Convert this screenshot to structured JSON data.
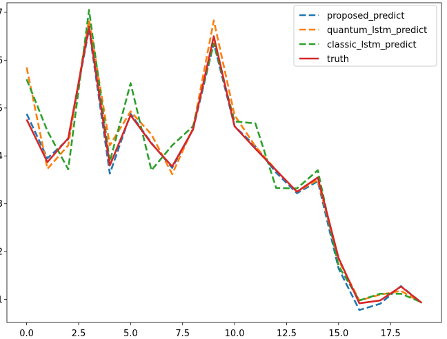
{
  "chart_data": {
    "type": "line",
    "title": "",
    "xlabel": "",
    "ylabel": "",
    "xlim": [
      -0.95,
      19.95
    ],
    "ylim": [
      0.52,
      7.2
    ],
    "x_ticks": [
      0.0,
      2.5,
      5.0,
      7.5,
      10.0,
      12.5,
      15.0,
      17.5
    ],
    "x_tick_labels": [
      "0.0",
      "2.5",
      "5.0",
      "7.5",
      "10.0",
      "12.5",
      "15.0",
      "17.5"
    ],
    "y_ticks": [
      1,
      2,
      3,
      4,
      5,
      6,
      7
    ],
    "y_tick_labels": [
      "1",
      "2",
      "3",
      "4",
      "5",
      "6",
      "7"
    ],
    "grid": false,
    "legend_position": "top-right",
    "x": [
      0,
      1,
      2,
      3,
      4,
      5,
      6,
      7,
      8,
      9,
      10,
      11,
      12,
      13,
      14,
      15,
      16,
      17,
      18,
      19
    ],
    "series": [
      {
        "name": "proposed_predict",
        "color": "#1f77b4",
        "style": "dashed",
        "values": [
          4.88,
          3.95,
          4.35,
          6.65,
          3.63,
          4.88,
          4.27,
          3.75,
          4.55,
          6.35,
          4.62,
          4.2,
          3.65,
          3.22,
          3.47,
          1.65,
          0.78,
          0.91,
          1.28,
          0.93
        ]
      },
      {
        "name": "quantum_lstm_predict",
        "color": "#ff7f0e",
        "style": "dashed",
        "values": [
          5.85,
          3.73,
          4.22,
          6.85,
          4.22,
          4.93,
          4.45,
          3.62,
          4.58,
          6.83,
          4.85,
          4.2,
          3.7,
          3.25,
          3.5,
          1.82,
          0.98,
          1.1,
          1.18,
          0.93
        ]
      },
      {
        "name": "classic_lstm_predict",
        "color": "#2ca02c",
        "style": "dashed",
        "values": [
          5.6,
          4.52,
          3.72,
          7.05,
          3.88,
          5.52,
          3.7,
          4.22,
          4.62,
          6.35,
          4.72,
          4.68,
          3.33,
          3.32,
          3.7,
          1.7,
          0.98,
          1.12,
          1.12,
          0.94
        ]
      },
      {
        "name": "truth",
        "color": "#d62728",
        "style": "solid",
        "values": [
          4.76,
          3.87,
          4.37,
          6.7,
          3.8,
          4.85,
          4.26,
          3.78,
          4.55,
          6.5,
          4.62,
          4.15,
          3.7,
          3.25,
          3.55,
          1.87,
          0.92,
          0.98,
          1.27,
          0.93
        ]
      }
    ]
  }
}
